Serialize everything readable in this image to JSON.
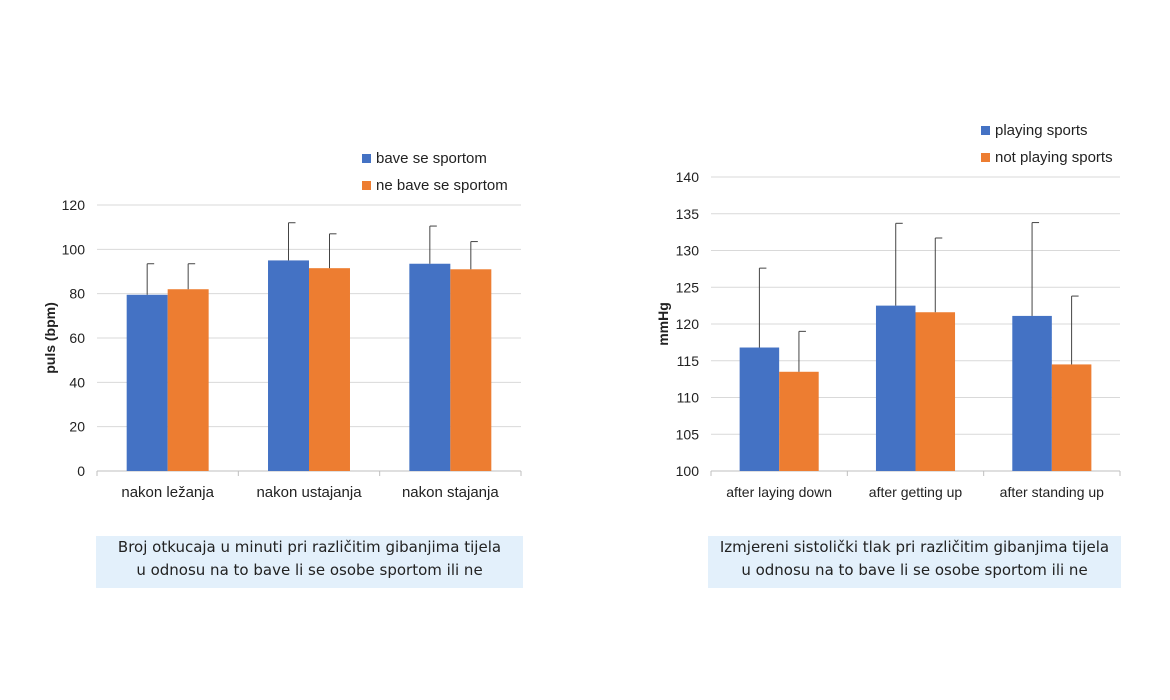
{
  "colors": {
    "series1": "#4472c4",
    "series2": "#ed7d31",
    "grid": "#d9d9d9",
    "axis": "#bfbfbf",
    "caption_bg": "#e3f0fb"
  },
  "captions": {
    "left": {
      "line1": "Broj otkucaja u minuti pri različitim gibanjima tijela",
      "line2": "u odnosu na to bave li se osobe sportom ili ne"
    },
    "right": {
      "line1": "Izmjereni sistolički tlak pri različitim gibanjima tijela",
      "line2": "u odnosu na to bave li se osobe sportom ili ne"
    }
  },
  "chart_data": [
    {
      "type": "bar",
      "categories": [
        "nakon ležanja",
        "nakon ustajanja",
        "nakon stajanja"
      ],
      "ylabel": "puls (bpm)",
      "ylim": [
        0,
        120
      ],
      "yticks": [
        0,
        20,
        40,
        60,
        80,
        100,
        120
      ],
      "grid": true,
      "legend": "top-right",
      "series": [
        {
          "name": "bave se sportom",
          "values": [
            79.5,
            95,
            93.5
          ],
          "error_upper": [
            93.5,
            112,
            110.5
          ]
        },
        {
          "name": "ne bave se sportom",
          "values": [
            82,
            91.5,
            91
          ],
          "error_upper": [
            93.5,
            107,
            103.5
          ]
        }
      ]
    },
    {
      "type": "bar",
      "categories": [
        "after laying down",
        "after getting up",
        "after standing up"
      ],
      "ylabel": "mmHg",
      "ylim": [
        100,
        140
      ],
      "yticks": [
        100,
        105,
        110,
        115,
        120,
        125,
        130,
        135,
        140
      ],
      "grid": true,
      "legend": "top-right",
      "series": [
        {
          "name": "playing sports",
          "values": [
            116.8,
            122.5,
            121.1
          ],
          "error_upper": [
            127.6,
            133.7,
            133.8
          ]
        },
        {
          "name": "not playing sports",
          "values": [
            113.5,
            121.6,
            114.5
          ],
          "error_upper": [
            119,
            131.7,
            123.8
          ]
        }
      ]
    }
  ]
}
